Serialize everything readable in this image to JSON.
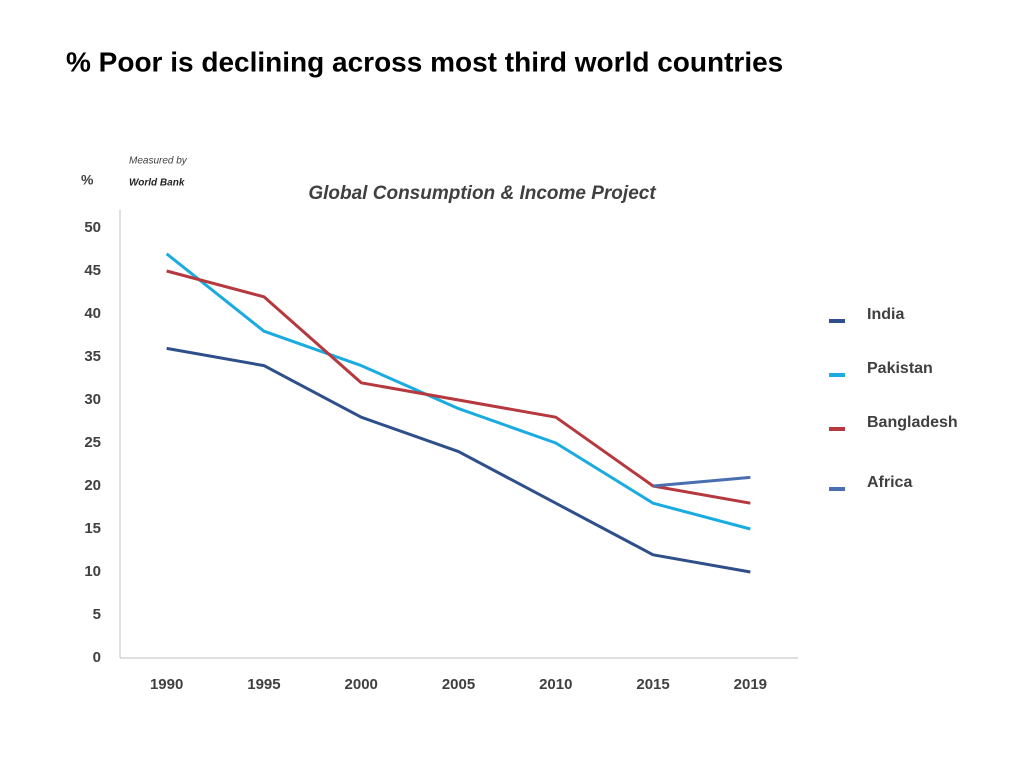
{
  "chart_data": {
    "type": "line",
    "title": "% Poor is declining across most third world countries",
    "subtitle": "Global Consumption & Income Project",
    "y_label": "%",
    "annotations": [
      "Measured by",
      "World Bank"
    ],
    "categories": [
      "1990",
      "1995",
      "2000",
      "2005",
      "2010",
      "2015",
      "2019"
    ],
    "series": [
      {
        "name": "India",
        "color": "#2f4f8a",
        "values": [
          36,
          34,
          28,
          24,
          18,
          12,
          10
        ]
      },
      {
        "name": "Pakistan",
        "color": "#1aace0",
        "values": [
          47,
          38,
          34,
          29,
          25,
          18,
          15
        ]
      },
      {
        "name": "Bangladesh",
        "color": "#b5393e",
        "values": [
          45,
          42,
          32,
          30,
          28,
          20,
          18
        ]
      },
      {
        "name": "Africa",
        "color": "#4a6fb0",
        "values": [
          null,
          null,
          null,
          null,
          null,
          20,
          21
        ]
      }
    ],
    "ylim": [
      0,
      50
    ],
    "yticks": [
      0,
      5,
      10,
      15,
      20,
      25,
      30,
      35,
      40,
      45,
      50
    ],
    "grid": false,
    "legend": "right"
  }
}
